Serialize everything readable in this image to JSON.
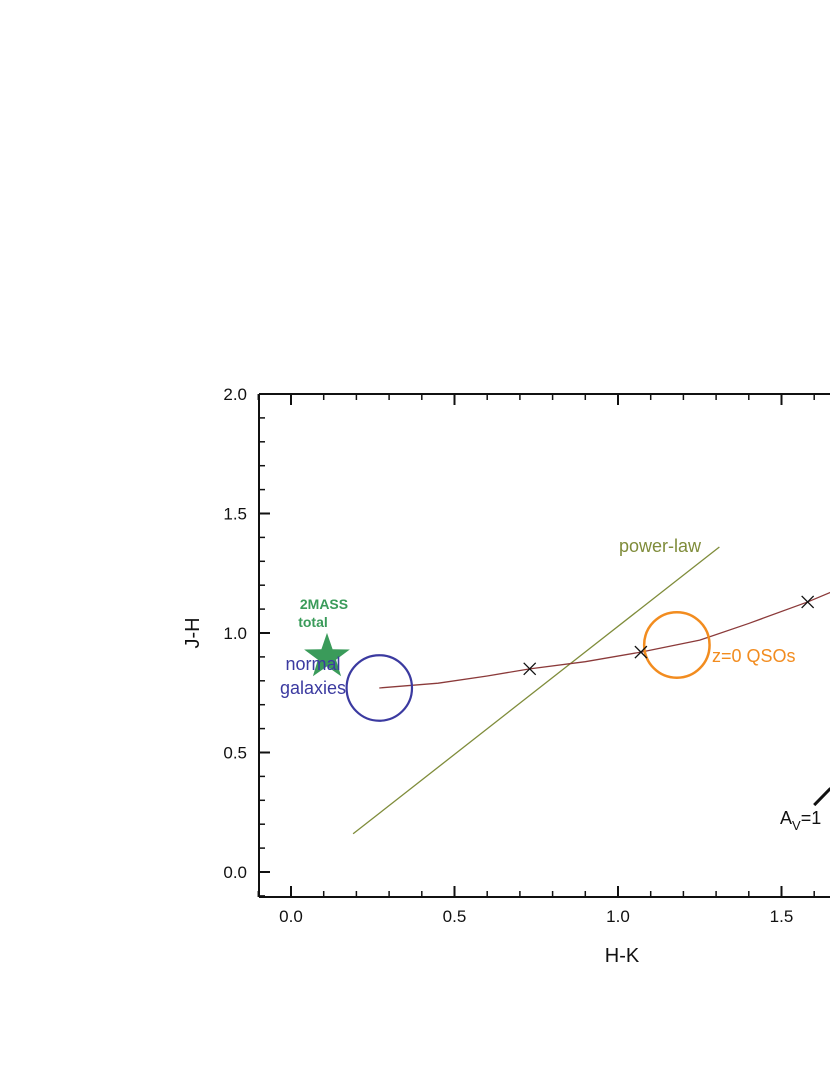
{
  "chart_data": {
    "type": "scatter",
    "xlabel": "H-K",
    "ylabel": "J-H",
    "xlim": [
      -0.1,
      1.65
    ],
    "ylim": [
      -0.1,
      2.0
    ],
    "xticks": [
      "0.0",
      "0.5",
      "1.0",
      "1.5"
    ],
    "yticks": [
      "0.0",
      "0.5",
      "1.0",
      "1.5",
      "2.0"
    ],
    "xtick_values": [
      0.0,
      0.5,
      1.0,
      1.5
    ],
    "ytick_values": [
      0.0,
      0.5,
      1.0,
      1.5,
      2.0
    ],
    "grid": false,
    "colors": {
      "qso_track": "#8b3a3a",
      "power_law": "#7f8c3a",
      "normal_galaxies": "#3b3aa0",
      "qso_region": "#f28c1f",
      "twomass": "#3a9b5a",
      "markers": "#111111",
      "reddening": "#111111"
    },
    "qso_track": {
      "x": [
        0.27,
        0.45,
        0.6,
        0.73,
        0.9,
        1.07,
        1.25,
        1.4,
        1.58,
        1.65
      ],
      "y": [
        0.77,
        0.79,
        0.82,
        0.85,
        0.88,
        0.92,
        0.97,
        1.04,
        1.13,
        1.17
      ]
    },
    "track_markers": {
      "x": [
        0.73,
        1.07,
        1.58
      ],
      "y": [
        0.85,
        0.92,
        1.13
      ]
    },
    "power_law": {
      "label": "power-law",
      "x": [
        0.19,
        1.31
      ],
      "y": [
        0.16,
        1.36
      ]
    },
    "normal_galaxies": {
      "label_line1": "normal",
      "label_line2": "galaxies",
      "center": [
        0.27,
        0.77
      ],
      "radius": 0.1
    },
    "qso_region": {
      "label": "z=0 QSOs",
      "center": [
        1.18,
        0.95
      ],
      "radius": 0.1
    },
    "twomass": {
      "label_line1": "2MASS",
      "label_line2": "total",
      "x": 0.11,
      "y": 0.9
    },
    "reddening": {
      "label_main": "A",
      "label_sub": "V",
      "label_tail": "=1",
      "x1": 1.6,
      "y1": 0.28,
      "x2": 1.65,
      "y2": 0.35
    }
  }
}
